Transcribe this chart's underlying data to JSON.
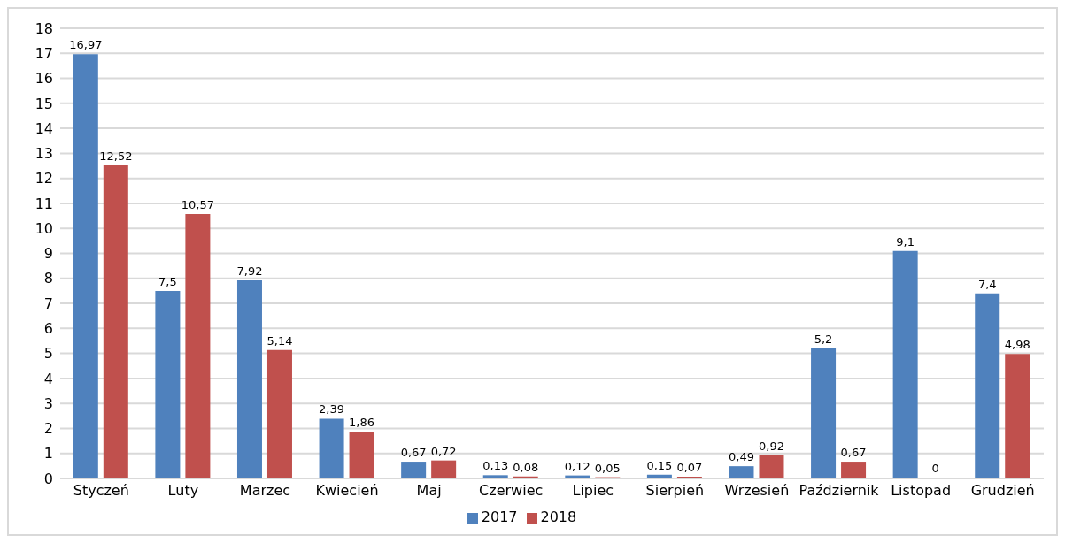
{
  "chart_data": {
    "type": "bar",
    "categories": [
      "Styczeń",
      "Luty",
      "Marzec",
      "Kwiecień",
      "Maj",
      "Czerwiec",
      "Lipiec",
      "Sierpień",
      "Wrzesień",
      "Październik",
      "Listopad",
      "Grudzień"
    ],
    "series": [
      {
        "name": "2017",
        "color": "#4f81bd",
        "values": [
          16.97,
          7.5,
          7.92,
          2.39,
          0.67,
          0.13,
          0.12,
          0.15,
          0.49,
          5.2,
          9.1,
          7.4
        ],
        "value_labels": [
          "16,97",
          "7,5",
          "7,92",
          "2,39",
          "0,67",
          "0,13",
          "0,12",
          "0,15",
          "0,49",
          "5,2",
          "9,1",
          "7,4"
        ]
      },
      {
        "name": "2018",
        "color": "#c0504d",
        "values": [
          12.52,
          10.57,
          5.14,
          1.86,
          0.72,
          0.08,
          0.05,
          0.07,
          0.92,
          0.67,
          0,
          4.98
        ],
        "value_labels": [
          "12,52",
          "10,57",
          "5,14",
          "1,86",
          "0,72",
          "0,08",
          "0,05",
          "0,07",
          "0,92",
          "0,67",
          "0",
          "4,98"
        ]
      }
    ],
    "ylim": [
      0,
      18
    ],
    "yticks": [
      0,
      1,
      2,
      3,
      4,
      5,
      6,
      7,
      8,
      9,
      10,
      11,
      12,
      13,
      14,
      15,
      16,
      17,
      18
    ],
    "grid": "y",
    "legend": "bottom"
  }
}
